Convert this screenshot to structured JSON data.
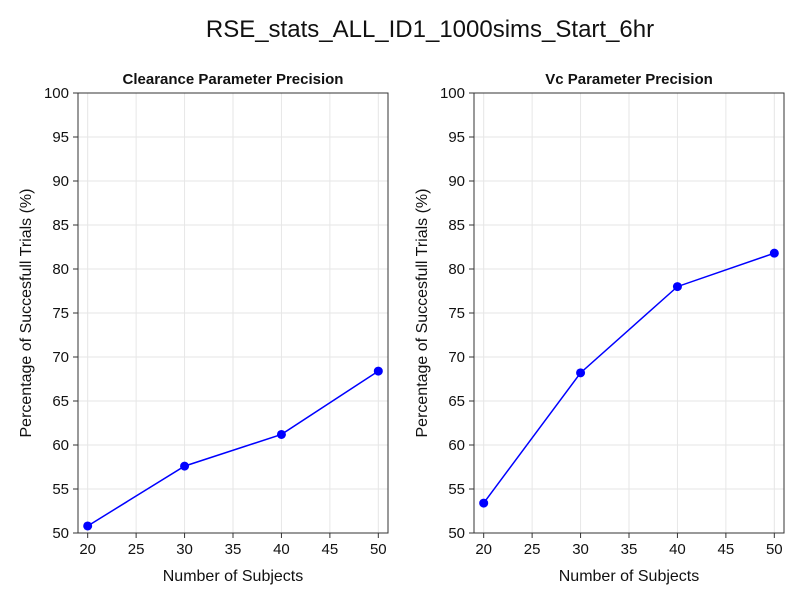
{
  "figure": {
    "title": "RSE_stats_ALL_ID1_1000sims_Start_6hr"
  },
  "colors": {
    "series": "#0000ff",
    "grid": "#e6e6e6",
    "frame": "#333333"
  },
  "chart_data": [
    {
      "type": "line",
      "title": "Clearance Parameter Precision",
      "xlabel": "Number of Subjects",
      "ylabel": "Percentage of Succesfull Trials (%)",
      "x": [
        20,
        30,
        40,
        50
      ],
      "series": [
        {
          "values": [
            50.8,
            57.6,
            61.2,
            68.4
          ]
        }
      ],
      "xticks": [
        20,
        25,
        30,
        35,
        40,
        45,
        50
      ],
      "yticks": [
        50,
        55,
        60,
        65,
        70,
        75,
        80,
        85,
        90,
        95,
        100
      ],
      "xlim": [
        19,
        51
      ],
      "ylim": [
        50,
        100
      ],
      "grid": true,
      "markers": true
    },
    {
      "type": "line",
      "title": "Vc Parameter Precision",
      "xlabel": "Number of Subjects",
      "ylabel": "Percentage of Succesfull Trials (%)",
      "x": [
        20,
        30,
        40,
        50
      ],
      "series": [
        {
          "values": [
            53.4,
            68.2,
            78.0,
            81.8
          ]
        }
      ],
      "xticks": [
        20,
        25,
        30,
        35,
        40,
        45,
        50
      ],
      "yticks": [
        50,
        55,
        60,
        65,
        70,
        75,
        80,
        85,
        90,
        95,
        100
      ],
      "xlim": [
        19,
        51
      ],
      "ylim": [
        50,
        100
      ],
      "grid": true,
      "markers": true
    }
  ]
}
